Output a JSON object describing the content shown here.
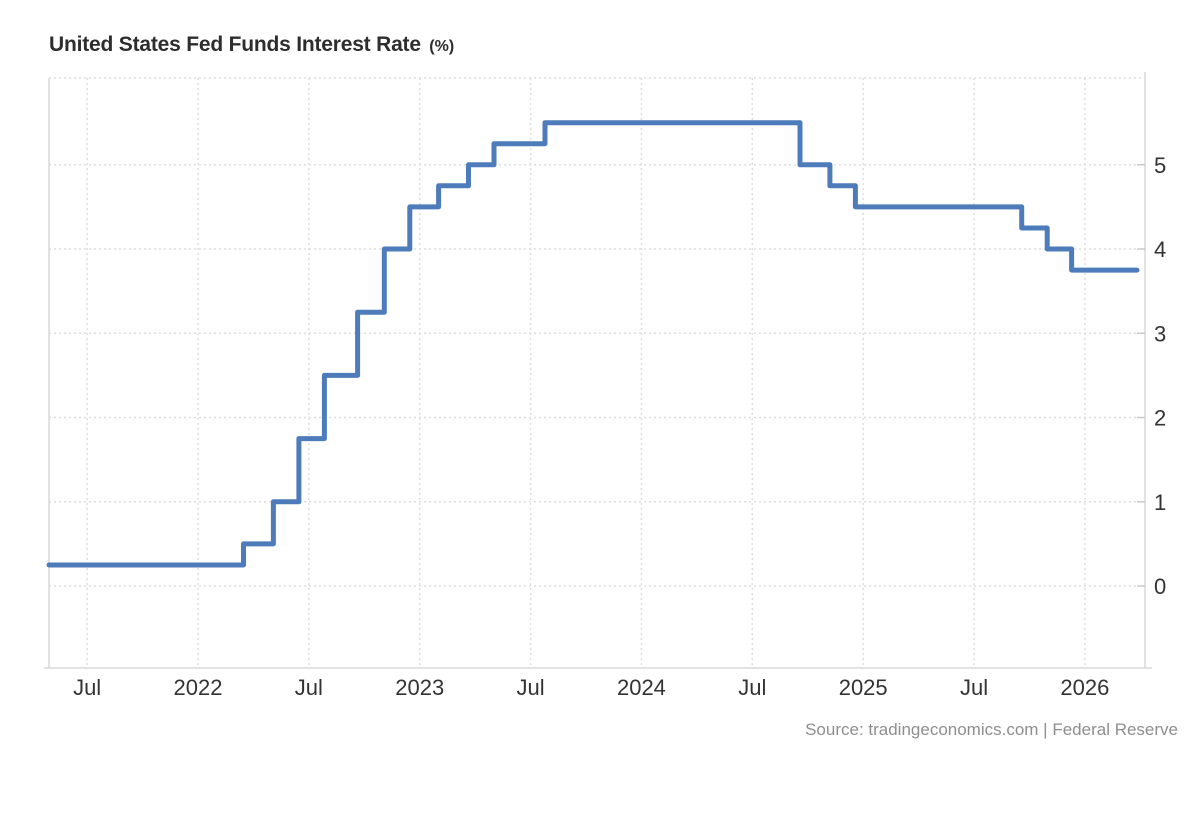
{
  "header": {
    "title": "United States Fed Funds Interest Rate",
    "unit_suffix": "(%)"
  },
  "footer": {
    "source_text": "Source: tradingeconomics.com | Federal Reserve"
  },
  "colors": {
    "line": "#4e7cba",
    "grid_dotted": "#dedede",
    "axis_solid": "#d9d9d9",
    "tick_mark": "#c9c9c9",
    "tick_label": "#333333",
    "title_text": "#2d2d2d",
    "source_text": "#8e8e8e",
    "background": "#ffffff"
  },
  "chart_data": {
    "type": "line",
    "subtype": "step-after",
    "title": "United States Fed Funds Interest Rate (%)",
    "xlabel": "",
    "ylabel": "",
    "unit": "%",
    "grid": true,
    "legend": "none",
    "xlim": [
      2021.328,
      2026.271
    ],
    "ylim": [
      -0.973,
      6.03
    ],
    "series": [
      {
        "name": "Fed Funds Rate",
        "points": [
          {
            "date": "2021-05",
            "t": 2021.328,
            "value": 0.25
          },
          {
            "date": "2022-03",
            "t": 2022.205,
            "value": 0.5
          },
          {
            "date": "2022-05",
            "t": 2022.34,
            "value": 1.0
          },
          {
            "date": "2022-06",
            "t": 2022.455,
            "value": 1.75
          },
          {
            "date": "2022-07",
            "t": 2022.57,
            "value": 2.5
          },
          {
            "date": "2022-09",
            "t": 2022.72,
            "value": 3.25
          },
          {
            "date": "2022-11",
            "t": 2022.84,
            "value": 4.0
          },
          {
            "date": "2022-12",
            "t": 2022.955,
            "value": 4.5
          },
          {
            "date": "2023-02",
            "t": 2023.085,
            "value": 4.75
          },
          {
            "date": "2023-03",
            "t": 2023.22,
            "value": 5.0
          },
          {
            "date": "2023-05",
            "t": 2023.335,
            "value": 5.25
          },
          {
            "date": "2023-07",
            "t": 2023.565,
            "value": 5.5
          },
          {
            "date": "2024-09",
            "t": 2024.715,
            "value": 5.0
          },
          {
            "date": "2024-11",
            "t": 2024.85,
            "value": 4.75
          },
          {
            "date": "2024-12",
            "t": 2024.965,
            "value": 4.5
          },
          {
            "date": "2025-09",
            "t": 2025.715,
            "value": 4.25
          },
          {
            "date": "2025-10",
            "t": 2025.83,
            "value": 4.0
          },
          {
            "date": "2025-12",
            "t": 2025.94,
            "value": 3.75
          }
        ],
        "end_t": 2026.235,
        "end_date": "2026-03",
        "end_value": 3.75
      }
    ],
    "x_ticks": [
      {
        "t": 2021.5,
        "label": "Jul"
      },
      {
        "t": 2022.0,
        "label": "2022"
      },
      {
        "t": 2022.5,
        "label": "Jul"
      },
      {
        "t": 2023.0,
        "label": "2023"
      },
      {
        "t": 2023.5,
        "label": "Jul"
      },
      {
        "t": 2024.0,
        "label": "2024"
      },
      {
        "t": 2024.5,
        "label": "Jul"
      },
      {
        "t": 2025.0,
        "label": "2025"
      },
      {
        "t": 2025.5,
        "label": "Jul"
      },
      {
        "t": 2026.0,
        "label": "2026"
      }
    ],
    "y_ticks": [
      0,
      1,
      2,
      3,
      4,
      5
    ]
  }
}
